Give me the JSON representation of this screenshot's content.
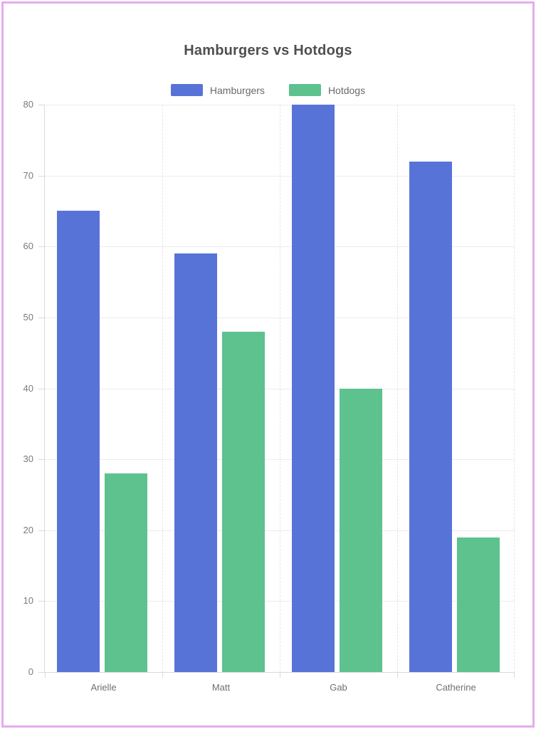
{
  "page": {
    "background": "#ffffff",
    "border_color": "#e6abef"
  },
  "chart_data": {
    "type": "bar",
    "title": "Hamburgers vs Hotdogs",
    "categories": [
      "Arielle",
      "Matt",
      "Gab",
      "Catherine"
    ],
    "series": [
      {
        "name": "Hamburgers",
        "color": "#5873d8",
        "values": [
          65,
          59,
          80,
          72
        ]
      },
      {
        "name": "Hotdogs",
        "color": "#5dc28e",
        "values": [
          28,
          48,
          40,
          19
        ]
      }
    ],
    "xlabel": "",
    "ylabel": "",
    "ylim": [
      0,
      80
    ],
    "yticks": [
      0,
      10,
      20,
      30,
      40,
      50,
      60,
      70,
      80
    ],
    "grid": true,
    "legend_position": "top",
    "title_color": "#4f4f4f",
    "axis_label_color": "#7a7a7a"
  }
}
